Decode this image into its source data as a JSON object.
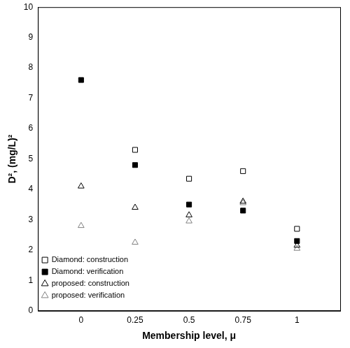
{
  "chart_data": {
    "type": "scatter",
    "x_label": "Membership level, μ",
    "y_label": "D², (mg/L)²",
    "xlim": [
      -0.2,
      1.2
    ],
    "xticks": [
      0,
      0.25,
      0.5,
      0.75,
      1
    ],
    "ylim": [
      0,
      10
    ],
    "yticks": [
      0,
      1,
      2,
      3,
      4,
      5,
      6,
      7,
      8,
      9,
      10
    ],
    "grid": false,
    "legend": "upper right",
    "series": [
      {
        "name": "Diamond: construction",
        "color": "#000000",
        "marker": "square_open",
        "x": [
          0.25,
          0.5,
          0.75,
          1
        ],
        "values": [
          5.3,
          4.35,
          4.6,
          2.7
        ]
      },
      {
        "name": "Diamond: verification",
        "color": "#000000",
        "marker": "square_filled",
        "x": [
          0,
          0.25,
          0.5,
          0.75,
          1
        ],
        "values": [
          7.6,
          4.8,
          3.5,
          3.3,
          2.3
        ]
      },
      {
        "name": "proposed: construction",
        "color": "#000000",
        "marker": "triangle_open",
        "x": [
          0,
          0.25,
          0.5,
          0.75,
          1
        ],
        "values": [
          4.1,
          3.4,
          3.15,
          3.6,
          2.15
        ]
      },
      {
        "name": "proposed: verification",
        "color": "#808080",
        "marker": "triangle_open",
        "x": [
          0,
          0.25,
          0.5,
          0.75,
          1
        ],
        "values": [
          2.8,
          2.25,
          2.95,
          3.55,
          2.05
        ]
      }
    ]
  }
}
